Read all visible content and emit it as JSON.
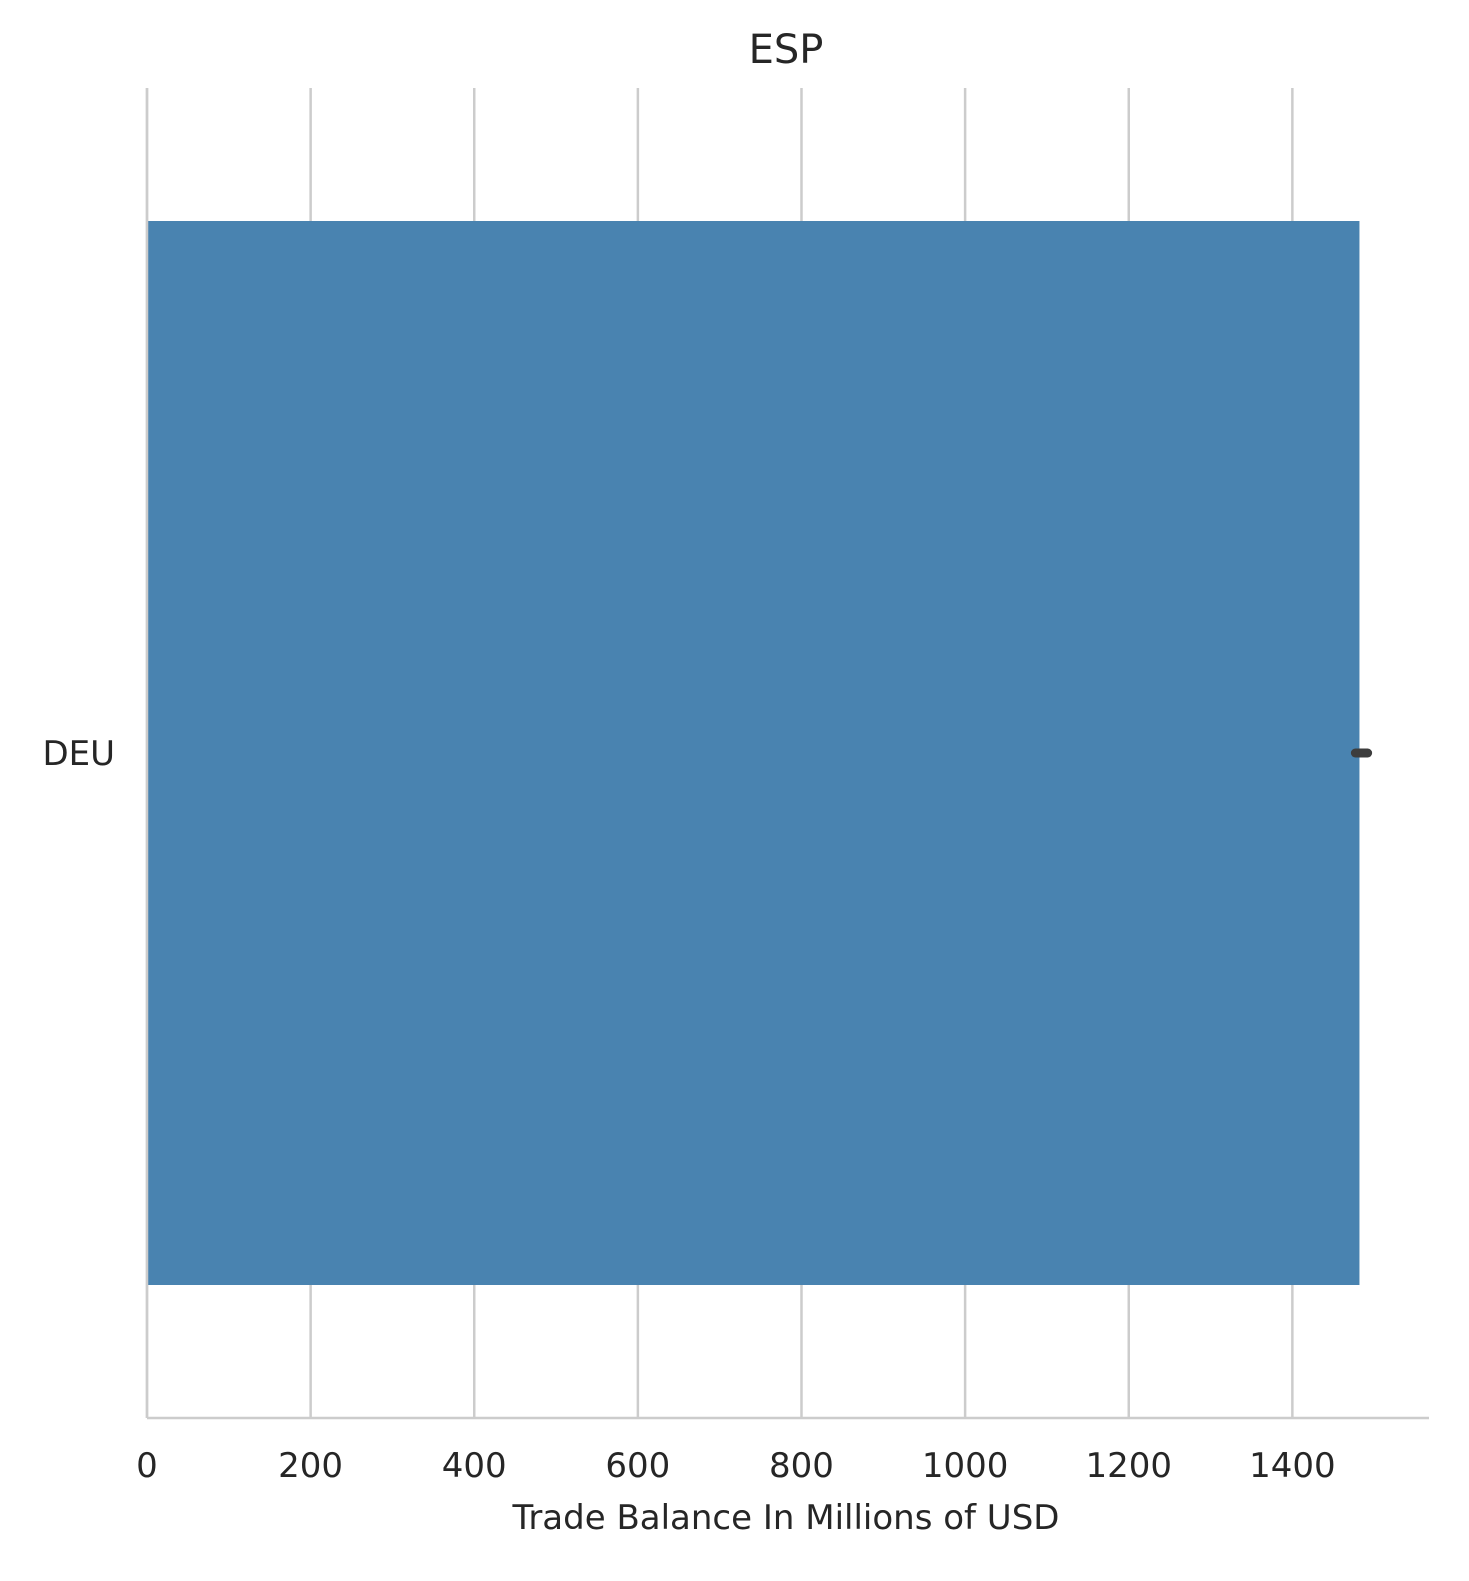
{
  "chart_data": {
    "type": "bar",
    "orientation": "horizontal",
    "title": "ESP",
    "xlabel": "Trade Balance In Millions of USD",
    "ylabel": "",
    "categories": [
      "DEU"
    ],
    "values": [
      1482
    ],
    "error_bars": [
      {
        "low": 1477,
        "high": 1492
      }
    ],
    "xlim": [
      0,
      1567
    ],
    "xticks": [
      0,
      200,
      400,
      600,
      800,
      1000,
      1200,
      1400
    ],
    "xtick_labels": [
      "0",
      "200",
      "400",
      "600",
      "800",
      "1000",
      "1200",
      "1400"
    ],
    "grid": "vertical",
    "legend": "none",
    "colors": {
      "bar": "#4983b0",
      "error_bar": "#3d3d3d",
      "grid": "#cccccc",
      "spine": "#cccccc",
      "text": "#262626"
    }
  }
}
